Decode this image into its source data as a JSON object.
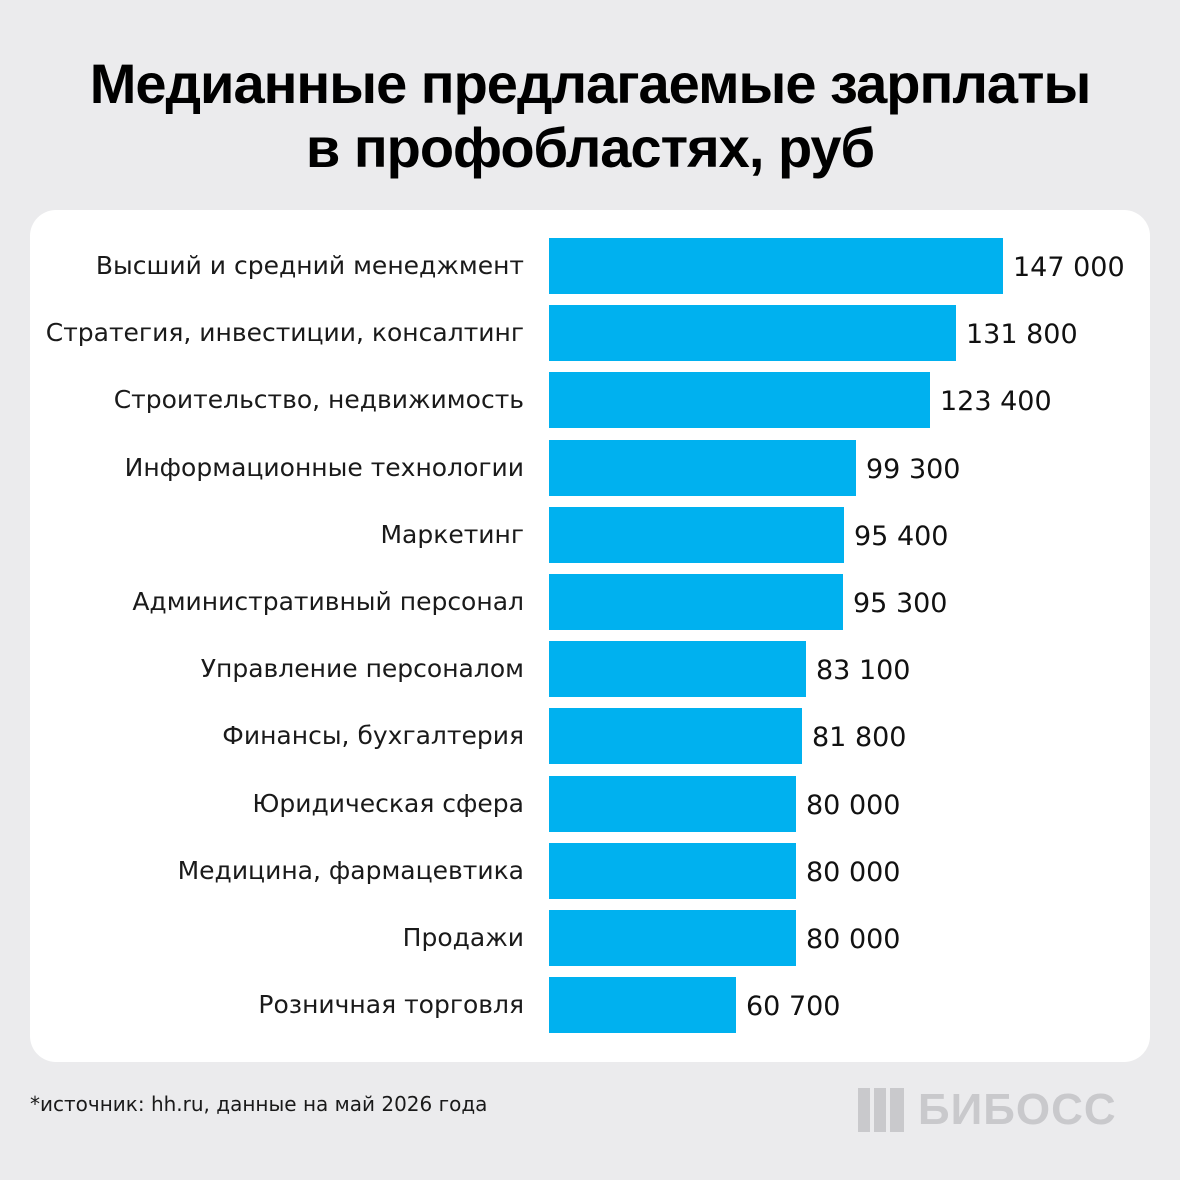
{
  "title": {
    "line1": "Медианные предлагаемые зарплаты",
    "line2": "в профобластях, руб"
  },
  "chart_data": {
    "type": "bar",
    "orientation": "horizontal",
    "categories": [
      "Высший и средний менеджмент",
      "Стратегия, инвестиции, консалтинг",
      "Строительство, недвижимость",
      "Информационные технологии",
      "Маркетинг",
      "Административный персонал",
      "Управление персоналом",
      "Финансы, бухгалтерия",
      "Юридическая сфера",
      "Медицина, фармацевтика",
      "Продажи",
      "Розничная торговля"
    ],
    "values": [
      147000,
      131800,
      123400,
      99300,
      95400,
      95300,
      83100,
      81800,
      80000,
      80000,
      80000,
      60700
    ],
    "value_labels": [
      "147 000",
      "131 800",
      "123 400",
      "99 300",
      "95 400",
      "95 300",
      "83 100",
      "81 800",
      "80 000",
      "80 000",
      "80 000",
      "60 700"
    ],
    "xlim": [
      0,
      147000
    ],
    "grid": false,
    "bar_color": "#00b1ef"
  },
  "footer": {
    "source": "*источник: hh.ru, данные на май 2026 года",
    "logo_text": "БИБОСС",
    "logo_icon": "bibos-logo-icon"
  },
  "colors": {
    "background": "#ebebed",
    "card": "#ffffff",
    "bar": "#00b1ef",
    "logo": "#c9c9cc"
  }
}
